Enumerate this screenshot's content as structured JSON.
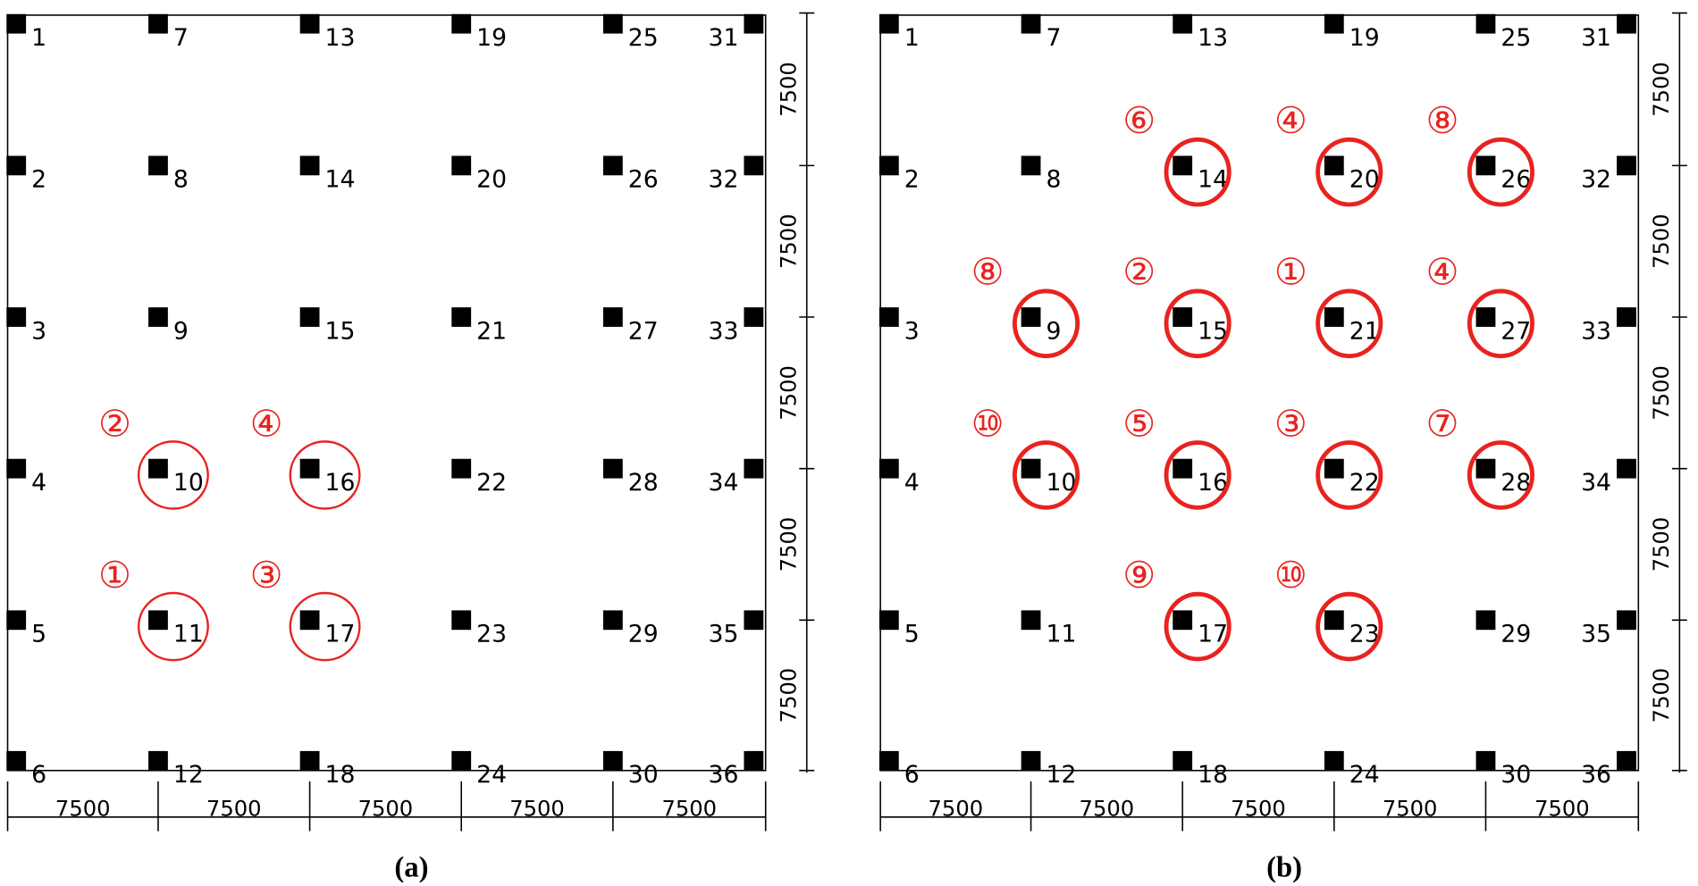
{
  "panels": [
    {
      "caption": "(a)",
      "columns": [
        {
          "label": "1"
        },
        {
          "label": "2"
        },
        {
          "label": "3"
        },
        {
          "label": "4"
        },
        {
          "label": "5"
        },
        {
          "label": "6"
        },
        {
          "label": "7"
        },
        {
          "label": "8"
        },
        {
          "label": "9"
        },
        {
          "label": "10",
          "mark": "②"
        },
        {
          "label": "11",
          "mark": "①"
        },
        {
          "label": "12"
        },
        {
          "label": "13"
        },
        {
          "label": "14"
        },
        {
          "label": "15"
        },
        {
          "label": "16",
          "mark": "④"
        },
        {
          "label": "17",
          "mark": "③"
        },
        {
          "label": "18"
        },
        {
          "label": "19"
        },
        {
          "label": "20"
        },
        {
          "label": "21"
        },
        {
          "label": "22"
        },
        {
          "label": "23"
        },
        {
          "label": "24"
        },
        {
          "label": "25"
        },
        {
          "label": "26"
        },
        {
          "label": "27"
        },
        {
          "label": "28"
        },
        {
          "label": "29"
        },
        {
          "label": "30"
        },
        {
          "label": "31"
        },
        {
          "label": "32"
        },
        {
          "label": "33"
        },
        {
          "label": "34"
        },
        {
          "label": "35"
        },
        {
          "label": "36"
        }
      ],
      "dims_x": [
        "7500",
        "7500",
        "7500",
        "7500",
        "7500"
      ],
      "dims_y": [
        "7500",
        "7500",
        "7500",
        "7500",
        "7500"
      ]
    },
    {
      "caption": "(b)",
      "columns": [
        {
          "label": "1"
        },
        {
          "label": "2"
        },
        {
          "label": "3"
        },
        {
          "label": "4"
        },
        {
          "label": "5"
        },
        {
          "label": "6"
        },
        {
          "label": "7"
        },
        {
          "label": "8"
        },
        {
          "label": "9",
          "mark": "⑧"
        },
        {
          "label": "10",
          "mark": "⑩"
        },
        {
          "label": "11"
        },
        {
          "label": "12"
        },
        {
          "label": "13"
        },
        {
          "label": "14",
          "mark": "⑥"
        },
        {
          "label": "15",
          "mark": "②"
        },
        {
          "label": "16",
          "mark": "⑤"
        },
        {
          "label": "17",
          "mark": "⑨"
        },
        {
          "label": "18"
        },
        {
          "label": "19"
        },
        {
          "label": "20",
          "mark": "④"
        },
        {
          "label": "21",
          "mark": "①"
        },
        {
          "label": "22",
          "mark": "③"
        },
        {
          "label": "23",
          "mark": "⑩"
        },
        {
          "label": "24"
        },
        {
          "label": "25"
        },
        {
          "label": "26",
          "mark": "⑧"
        },
        {
          "label": "27",
          "mark": "④"
        },
        {
          "label": "28",
          "mark": "⑦"
        },
        {
          "label": "29"
        },
        {
          "label": "30"
        },
        {
          "label": "31"
        },
        {
          "label": "32"
        },
        {
          "label": "33"
        },
        {
          "label": "34"
        },
        {
          "label": "35"
        },
        {
          "label": "36"
        }
      ],
      "dims_x": [
        "7500",
        "7500",
        "7500",
        "7500",
        "7500"
      ],
      "dims_y": [
        "7500",
        "7500",
        "7500",
        "7500",
        "7500"
      ]
    }
  ]
}
